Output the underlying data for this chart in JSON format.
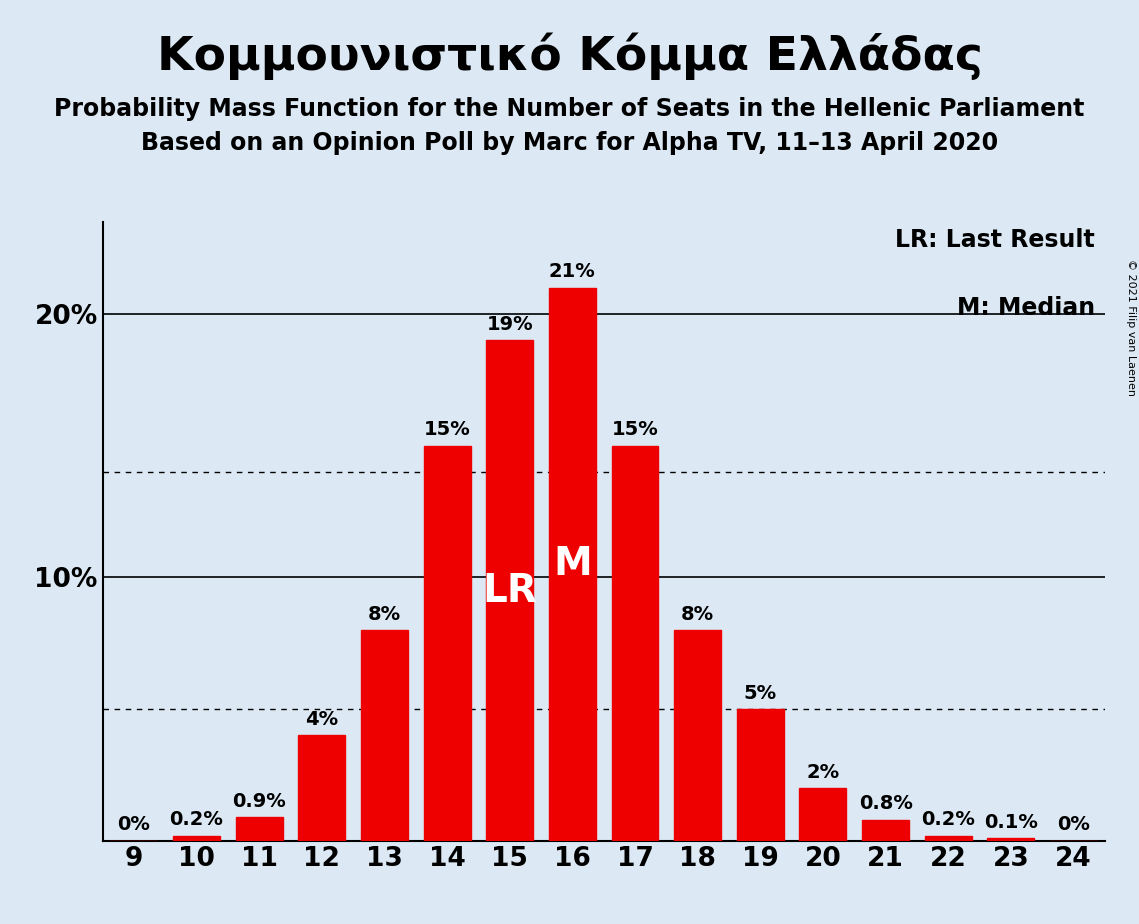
{
  "title": "Κομμουνιστικό Κόμμα Ελλάδας",
  "subtitle1": "Probability Mass Function for the Number of Seats in the Hellenic Parliament",
  "subtitle2": "Based on an Opinion Poll by Marc for Alpha TV, 11–13 April 2020",
  "copyright": "© 2021 Filip van Laenen",
  "seats": [
    9,
    10,
    11,
    12,
    13,
    14,
    15,
    16,
    17,
    18,
    19,
    20,
    21,
    22,
    23,
    24
  ],
  "probabilities": [
    0.0,
    0.2,
    0.9,
    4.0,
    8.0,
    15.0,
    19.0,
    21.0,
    15.0,
    8.0,
    5.0,
    2.0,
    0.8,
    0.2,
    0.1,
    0.0
  ],
  "prob_labels": [
    "0%",
    "0.2%",
    "0.9%",
    "4%",
    "8%",
    "15%",
    "19%",
    "21%",
    "15%",
    "8%",
    "5%",
    "2%",
    "0.8%",
    "0.2%",
    "0.1%",
    "0%"
  ],
  "bar_color": "#ee0000",
  "bg_color": "#dce9f5",
  "text_color": "#000000",
  "last_result_seat": 15,
  "median_seat": 16,
  "lr_label": "LR",
  "m_label": "M",
  "legend_lr": "LR: Last Result",
  "legend_m": "M: Median",
  "ylim_max": 23.5,
  "dotted_lines": [
    5.0,
    14.0
  ],
  "solid_lines": [
    10.0,
    20.0
  ],
  "bar_width": 0.75,
  "title_fontsize": 34,
  "subtitle_fontsize": 17,
  "label_fontsize": 14,
  "inside_label_fontsize": 28,
  "tick_fontsize": 19,
  "legend_fontsize": 17,
  "copyright_fontsize": 8
}
